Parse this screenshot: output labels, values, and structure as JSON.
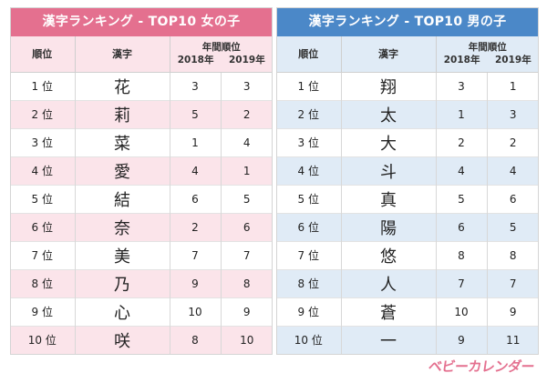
{
  "girls": {
    "title": "漢字ランキング - TOP10 女の子",
    "headers": {
      "rank": "順位",
      "kanji": "漢字",
      "year_group": "年間順位",
      "y2018": "2018年",
      "y2019": "2019年"
    },
    "rows": [
      {
        "rank": "1 位",
        "kanji": "花",
        "r2018": "3",
        "r2019": "3"
      },
      {
        "rank": "2 位",
        "kanji": "莉",
        "r2018": "5",
        "r2019": "2"
      },
      {
        "rank": "3 位",
        "kanji": "菜",
        "r2018": "1",
        "r2019": "4"
      },
      {
        "rank": "4 位",
        "kanji": "愛",
        "r2018": "4",
        "r2019": "1"
      },
      {
        "rank": "5 位",
        "kanji": "結",
        "r2018": "6",
        "r2019": "5"
      },
      {
        "rank": "6 位",
        "kanji": "奈",
        "r2018": "2",
        "r2019": "6"
      },
      {
        "rank": "7 位",
        "kanji": "美",
        "r2018": "7",
        "r2019": "7"
      },
      {
        "rank": "8 位",
        "kanji": "乃",
        "r2018": "9",
        "r2019": "8"
      },
      {
        "rank": "9 位",
        "kanji": "心",
        "r2018": "10",
        "r2019": "9"
      },
      {
        "rank": "10 位",
        "kanji": "咲",
        "r2018": "8",
        "r2019": "10"
      }
    ]
  },
  "boys": {
    "title": "漢字ランキング - TOP10 男の子",
    "headers": {
      "rank": "順位",
      "kanji": "漢字",
      "year_group": "年間順位",
      "y2018": "2018年",
      "y2019": "2019年"
    },
    "rows": [
      {
        "rank": "1 位",
        "kanji": "翔",
        "r2018": "3",
        "r2019": "1"
      },
      {
        "rank": "2 位",
        "kanji": "太",
        "r2018": "1",
        "r2019": "3"
      },
      {
        "rank": "3 位",
        "kanji": "大",
        "r2018": "2",
        "r2019": "2"
      },
      {
        "rank": "4 位",
        "kanji": "斗",
        "r2018": "4",
        "r2019": "4"
      },
      {
        "rank": "5 位",
        "kanji": "真",
        "r2018": "5",
        "r2019": "6"
      },
      {
        "rank": "6 位",
        "kanji": "陽",
        "r2018": "6",
        "r2019": "5"
      },
      {
        "rank": "7 位",
        "kanji": "悠",
        "r2018": "8",
        "r2019": "8"
      },
      {
        "rank": "8 位",
        "kanji": "人",
        "r2018": "7",
        "r2019": "7"
      },
      {
        "rank": "9 位",
        "kanji": "蒼",
        "r2018": "10",
        "r2019": "9"
      },
      {
        "rank": "10 位",
        "kanji": "一",
        "r2018": "9",
        "r2019": "11"
      }
    ]
  },
  "logo": "ベビーカレンダー",
  "colors": {
    "girls_accent": "#e4708f",
    "girls_stripe": "#fbe4ea",
    "boys_accent": "#4b88c8",
    "boys_stripe": "#e0ebf6"
  }
}
